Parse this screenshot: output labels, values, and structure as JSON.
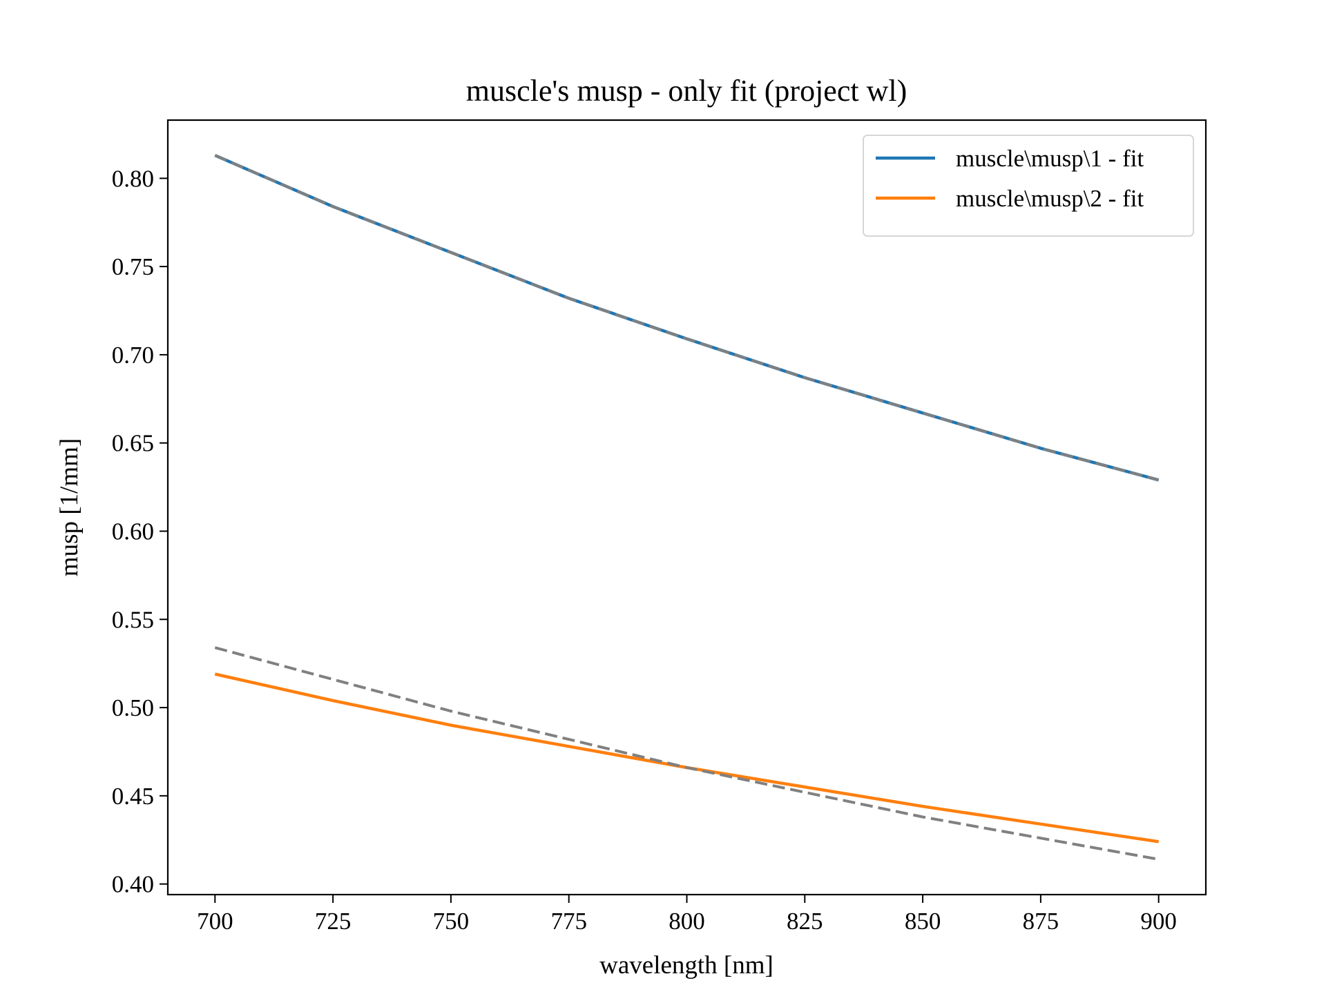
{
  "chart_data": {
    "type": "line",
    "title": "muscle's musp - only fit (project wl)",
    "xlabel": "wavelength [nm]",
    "ylabel": "musp [1/mm]",
    "xlim": [
      690,
      910
    ],
    "ylim": [
      0.394,
      0.833
    ],
    "xticks": [
      700,
      725,
      750,
      775,
      800,
      825,
      850,
      875,
      900
    ],
    "xtick_labels": [
      "700",
      "725",
      "750",
      "775",
      "800",
      "825",
      "850",
      "875",
      "900"
    ],
    "yticks": [
      0.4,
      0.45,
      0.5,
      0.55,
      0.6,
      0.65,
      0.7,
      0.75,
      0.8
    ],
    "ytick_labels": [
      "0.40",
      "0.45",
      "0.50",
      "0.55",
      "0.60",
      "0.65",
      "0.70",
      "0.75",
      "0.80"
    ],
    "grid": false,
    "legend_position": "top-right",
    "x": [
      700,
      725,
      750,
      775,
      800,
      825,
      850,
      875,
      900
    ],
    "series": [
      {
        "name": "muscle\\musp\\1 - fit",
        "color": "#1f77b4",
        "style": "solid",
        "values": [
          0.813,
          0.784,
          0.758,
          0.732,
          0.709,
          0.687,
          0.667,
          0.647,
          0.629
        ]
      },
      {
        "name": "muscle\\musp\\2 - fit",
        "color": "#ff7f0e",
        "style": "solid",
        "values": [
          0.519,
          0.504,
          0.49,
          0.478,
          0.466,
          0.455,
          0.444,
          0.434,
          0.424
        ]
      },
      {
        "color": "#808080",
        "style": "dashed",
        "values": [
          0.813,
          0.784,
          0.758,
          0.732,
          0.709,
          0.687,
          0.667,
          0.647,
          0.629
        ]
      },
      {
        "color": "#808080",
        "style": "dashed",
        "values": [
          0.534,
          0.516,
          0.498,
          0.482,
          0.466,
          0.452,
          0.438,
          0.426,
          0.414
        ]
      }
    ]
  }
}
